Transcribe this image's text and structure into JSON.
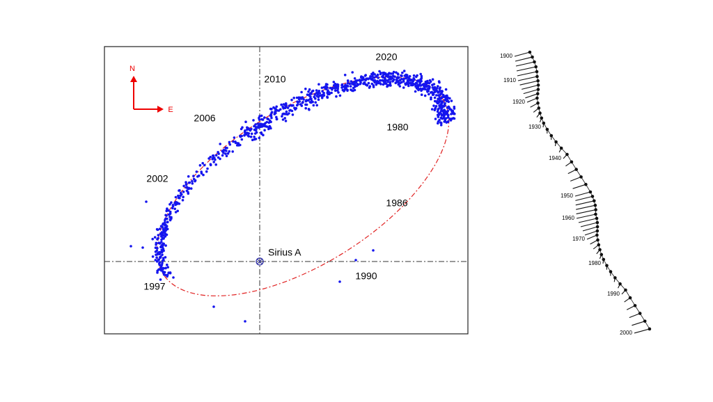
{
  "compass": {
    "north": "N",
    "east": "E"
  },
  "star": "Sirius A",
  "orbit_labels": [
    "2020",
    "2010",
    "2006",
    "2002",
    "1997",
    "1980",
    "1986",
    "1990"
  ],
  "track_labels": [
    "1900",
    "1910",
    "1920",
    "1930",
    "1940",
    "1950",
    "1960",
    "1970",
    "1980",
    "1990",
    "2000"
  ]
}
